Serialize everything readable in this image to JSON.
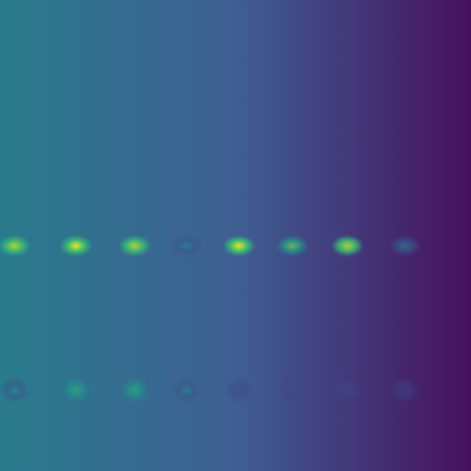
{
  "image": {
    "kind": "fluorescence micrograph",
    "colormap": "viridis",
    "background_gradient": {
      "left": "#2a7b8c",
      "center": "#3f5f93",
      "right": "#47105e"
    },
    "colors": {
      "viridis_yellow": "#f2ea1c",
      "viridis_green": "#35b779",
      "viridis_teal": "#21918c",
      "viridis_blue": "#3b528b"
    }
  },
  "rows": [
    {
      "id": "top-row",
      "spots": [
        {
          "intensity": 0.85
        },
        {
          "intensity": 1.0
        },
        {
          "intensity": 0.85
        },
        {
          "intensity": 0.3
        },
        {
          "intensity": 1.0
        },
        {
          "intensity": 0.7
        },
        {
          "intensity": 0.85
        },
        {
          "intensity": 0.45
        }
      ]
    },
    {
      "id": "bottom-row",
      "spots": [
        {
          "intensity": 0.35
        },
        {
          "intensity": 0.45
        },
        {
          "intensity": 0.45
        },
        {
          "intensity": 0.25
        },
        {
          "intensity": 0.15
        },
        {
          "intensity": 0.12
        },
        {
          "intensity": 0.15
        },
        {
          "intensity": 0.12
        }
      ]
    }
  ]
}
